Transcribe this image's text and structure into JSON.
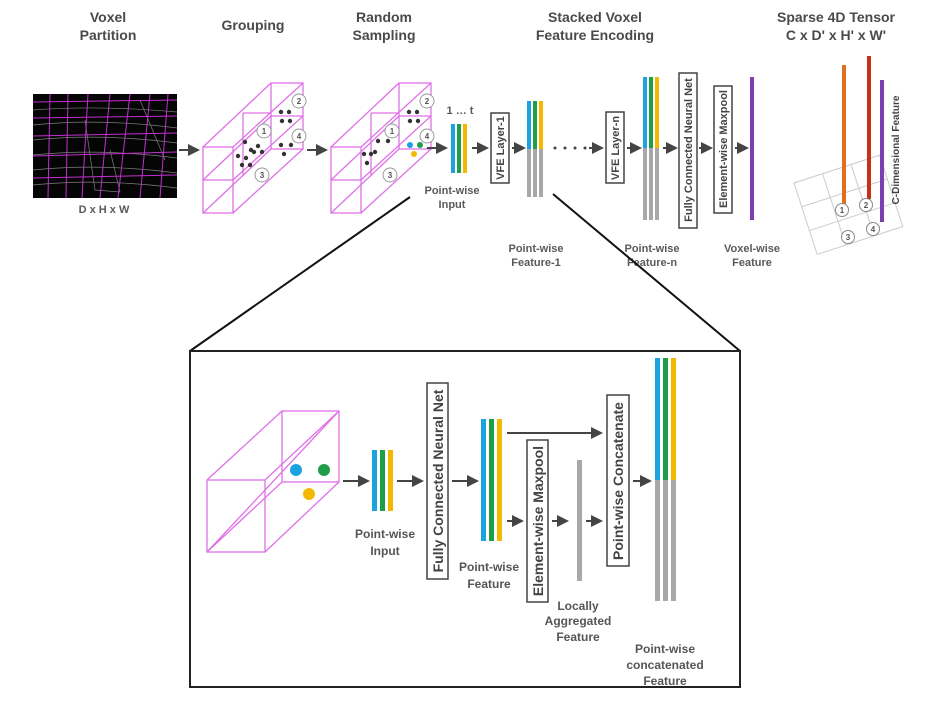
{
  "top": {
    "stages": {
      "voxel_partition": [
        "Voxel",
        "Partition"
      ],
      "grouping": "Grouping",
      "random_sampling": [
        "Random",
        "Sampling"
      ],
      "svfe": [
        "Stacked Voxel",
        "Feature Encoding"
      ],
      "sparse_tensor": [
        "Sparse 4D Tensor",
        "C x D' x H' x W'"
      ]
    },
    "dims_label": "D x H x W",
    "one_to_t": "1 … t",
    "voxel_ids": [
      "1",
      "2",
      "3",
      "4"
    ],
    "pointwise_input": [
      "Point-wise",
      "Input"
    ],
    "vfe_layer_1": "VFE Layer-1",
    "vfe_layer_n": "VFE Layer-n",
    "pointwise_feature_1": [
      "Point-wise",
      "Feature-1"
    ],
    "pointwise_feature_n": [
      "Point-wise",
      "Feature-n"
    ],
    "fcn": "Fully Connected Neural Net",
    "maxpool": "Element-wise Maxpool",
    "voxelwise_feature": [
      "Voxel-wise",
      "Feature"
    ],
    "c_dim_feature": "C-Dimensional Feature"
  },
  "detail": {
    "pointwise_input": [
      "Point-wise",
      "Input"
    ],
    "fcn": "Fully Connected Neural Net",
    "pointwise_feature": [
      "Point-wise",
      "Feature"
    ],
    "maxpool": "Element-wise Maxpool",
    "locally_aggregated": [
      "Locally",
      "Aggregated",
      "Feature"
    ],
    "concatenate": "Point-wise Concatenate",
    "concatenated_feature": [
      "Point-wise",
      "concatenated",
      "Feature"
    ]
  },
  "colors": {
    "voxel_grid": "#e070e8",
    "blue": "#1aa3e0",
    "green": "#1f9e4a",
    "yellow": "#f5b800",
    "gray": "#a8a8a8",
    "purple": "#7a3fb0",
    "orange": "#e07020",
    "red": "#c83018"
  }
}
